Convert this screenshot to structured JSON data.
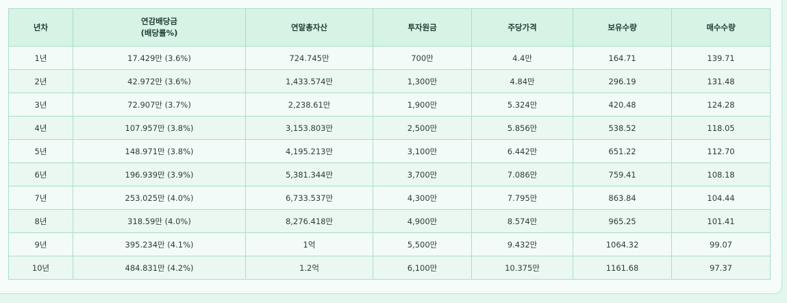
{
  "table": {
    "headers": [
      {
        "line1": "년차",
        "line2": ""
      },
      {
        "line1": "연감배당금",
        "line2": "(배당률%)"
      },
      {
        "line1": "연말총자산",
        "line2": ""
      },
      {
        "line1": "투자원금",
        "line2": ""
      },
      {
        "line1": "주당가격",
        "line2": ""
      },
      {
        "line1": "보유수량",
        "line2": ""
      },
      {
        "line1": "매수수량",
        "line2": ""
      }
    ],
    "rows": [
      [
        "1년",
        "17.429만 (3.6%)",
        "724.745만",
        "700만",
        "4.4만",
        "164.71",
        "139.71"
      ],
      [
        "2년",
        "42.972만 (3.6%)",
        "1,433.574만",
        "1,300만",
        "4.84만",
        "296.19",
        "131.48"
      ],
      [
        "3년",
        "72.907만 (3.7%)",
        "2,238.61만",
        "1,900만",
        "5.324만",
        "420.48",
        "124.28"
      ],
      [
        "4년",
        "107.957만 (3.8%)",
        "3,153.803만",
        "2,500만",
        "5.856만",
        "538.52",
        "118.05"
      ],
      [
        "5년",
        "148.971만 (3.8%)",
        "4,195.213만",
        "3,100만",
        "6.442만",
        "651.22",
        "112.70"
      ],
      [
        "6년",
        "196.939만 (3.9%)",
        "5,381.344만",
        "3,700만",
        "7.086만",
        "759.41",
        "108.18"
      ],
      [
        "7년",
        "253.025만 (4.0%)",
        "6,733.537만",
        "4,300만",
        "7.795만",
        "863.84",
        "104.44"
      ],
      [
        "8년",
        "318.59만 (4.0%)",
        "8,276.418만",
        "4,900만",
        "8.574만",
        "965.25",
        "101.41"
      ],
      [
        "9년",
        "395.234만 (4.1%)",
        "1억",
        "5,500만",
        "9.432만",
        "1064.32",
        "99.07"
      ],
      [
        "10년",
        "484.831만 (4.2%)",
        "1.2억",
        "6,100만",
        "10.375만",
        "1161.68",
        "97.37"
      ]
    ]
  },
  "colors": {
    "page_background": "#e3f7ef",
    "card_background": "#f5fcf9",
    "header_background": "#d6f3e6",
    "border": "#a9ddc9"
  }
}
